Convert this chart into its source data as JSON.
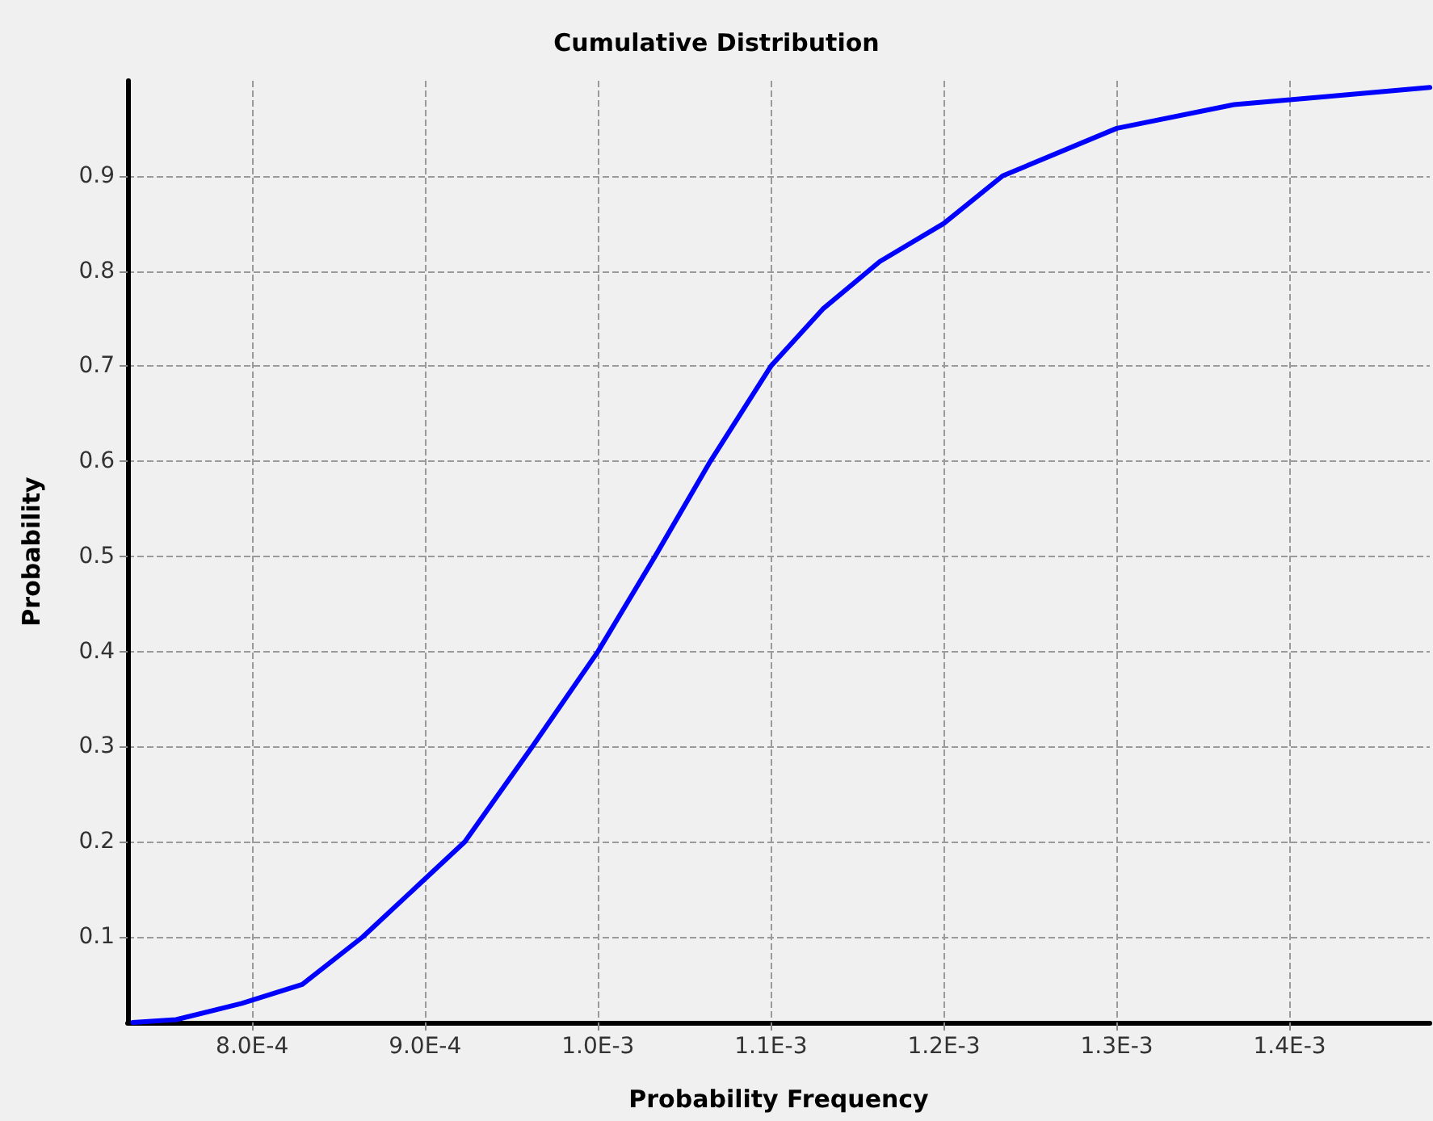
{
  "chart_data": {
    "type": "line",
    "title": "Cumulative Distribution",
    "xlabel": "Probability Frequency",
    "ylabel": "Probability",
    "series": [
      {
        "color": "#0000ff",
        "x": [
          0.000731,
          0.000756,
          0.000794,
          0.000829,
          0.000864,
          0.000923,
          0.000962,
          0.001,
          0.001033,
          0.001065,
          0.0011,
          0.00113,
          0.001163,
          0.0012,
          0.001234,
          0.0013,
          0.001368,
          0.001419,
          0.001481
        ],
        "values": [
          0.01,
          0.013,
          0.03,
          0.05,
          0.1,
          0.2,
          0.3,
          0.4,
          0.5,
          0.6,
          0.7,
          0.76,
          0.81,
          0.85,
          0.9,
          0.95,
          0.975,
          0.983,
          0.993
        ]
      }
    ],
    "xlim": [
      0.000728,
      0.001481
    ],
    "ylim": [
      0.01,
      1.0
    ],
    "xticks": [
      {
        "value": 0.0008,
        "label": "8.0E-4"
      },
      {
        "value": 0.0009,
        "label": "9.0E-4"
      },
      {
        "value": 0.001,
        "label": "1.0E-3"
      },
      {
        "value": 0.0011,
        "label": "1.1E-3"
      },
      {
        "value": 0.0012,
        "label": "1.2E-3"
      },
      {
        "value": 0.0013,
        "label": "1.3E-3"
      },
      {
        "value": 0.0014,
        "label": "1.4E-3"
      }
    ],
    "yticks": [
      0.1,
      0.2,
      0.3,
      0.4,
      0.5,
      0.6,
      0.7,
      0.8,
      0.9
    ],
    "grid": true,
    "marker": "none",
    "line_style": "solid"
  }
}
